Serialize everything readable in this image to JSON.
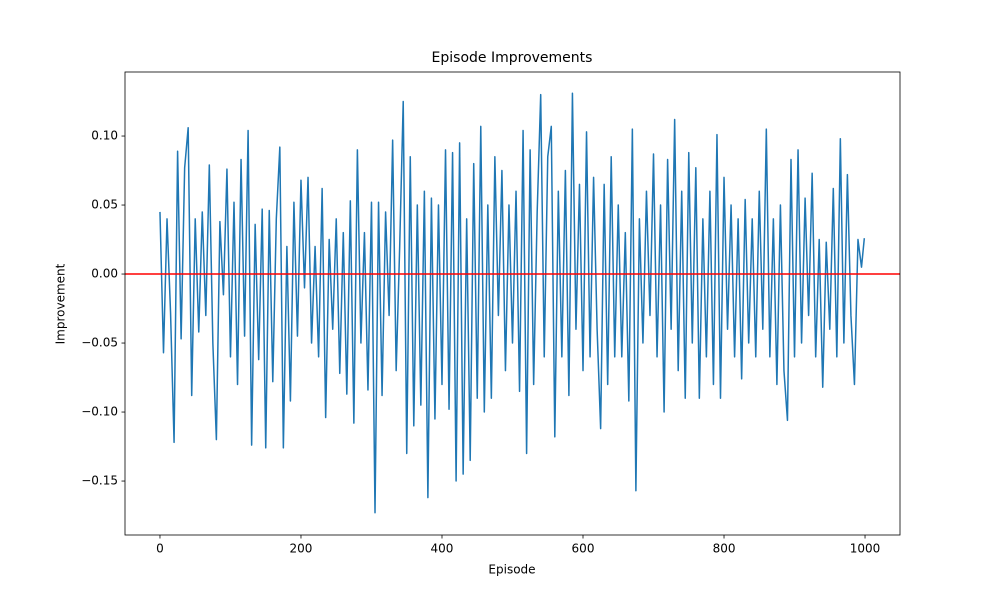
{
  "chart_data": {
    "type": "line",
    "title": "Episode Improvements",
    "x_label": "Episode",
    "y_label": "Improvement",
    "color": "#1f77b4",
    "x": [
      0,
      5,
      10,
      15,
      20,
      25,
      30,
      35,
      40,
      45,
      50,
      55,
      60,
      65,
      70,
      75,
      80,
      85,
      90,
      95,
      100,
      105,
      110,
      115,
      120,
      125,
      130,
      135,
      140,
      145,
      150,
      155,
      160,
      165,
      170,
      175,
      180,
      185,
      190,
      195,
      200,
      205,
      210,
      215,
      220,
      225,
      230,
      235,
      240,
      245,
      250,
      255,
      260,
      265,
      270,
      275,
      280,
      285,
      290,
      295,
      300,
      305,
      310,
      315,
      320,
      325,
      330,
      335,
      340,
      345,
      350,
      355,
      360,
      365,
      370,
      375,
      380,
      385,
      390,
      395,
      400,
      405,
      410,
      415,
      420,
      425,
      430,
      435,
      440,
      445,
      450,
      455,
      460,
      465,
      470,
      475,
      480,
      485,
      490,
      495,
      500,
      505,
      510,
      515,
      520,
      525,
      530,
      535,
      540,
      545,
      550,
      555,
      560,
      565,
      570,
      575,
      580,
      585,
      590,
      595,
      600,
      605,
      610,
      615,
      620,
      625,
      630,
      635,
      640,
      645,
      650,
      655,
      660,
      665,
      670,
      675,
      680,
      685,
      690,
      695,
      700,
      705,
      710,
      715,
      720,
      725,
      730,
      735,
      740,
      745,
      750,
      755,
      760,
      765,
      770,
      775,
      780,
      785,
      790,
      795,
      800,
      805,
      810,
      815,
      820,
      825,
      830,
      835,
      840,
      845,
      850,
      855,
      860,
      865,
      870,
      875,
      880,
      885,
      890,
      895,
      900,
      905,
      910,
      915,
      920,
      925,
      930,
      935,
      940,
      945,
      950,
      955,
      960,
      965,
      970,
      975,
      980,
      985,
      990,
      995,
      999
    ],
    "values": [
      0.045,
      -0.057,
      0.04,
      -0.028,
      -0.122,
      0.089,
      -0.047,
      0.077,
      0.106,
      -0.088,
      0.04,
      -0.042,
      0.045,
      -0.03,
      0.079,
      -0.05,
      -0.12,
      0.038,
      -0.015,
      0.076,
      -0.06,
      0.052,
      -0.08,
      0.083,
      -0.045,
      0.104,
      -0.124,
      0.036,
      -0.062,
      0.047,
      -0.126,
      0.046,
      -0.078,
      0.04,
      0.092,
      -0.126,
      0.02,
      -0.092,
      0.052,
      -0.045,
      0.068,
      -0.01,
      0.07,
      -0.05,
      0.02,
      -0.06,
      0.062,
      -0.104,
      0.025,
      -0.04,
      0.04,
      -0.072,
      0.03,
      -0.087,
      0.053,
      -0.108,
      0.09,
      -0.05,
      0.03,
      -0.084,
      0.052,
      -0.173,
      0.052,
      -0.088,
      0.045,
      -0.03,
      0.097,
      -0.07,
      0.02,
      0.125,
      -0.13,
      0.085,
      -0.11,
      0.05,
      -0.095,
      0.06,
      -0.162,
      0.055,
      -0.105,
      0.05,
      -0.08,
      0.09,
      -0.098,
      0.088,
      -0.15,
      0.095,
      -0.145,
      0.04,
      -0.135,
      0.08,
      -0.09,
      0.107,
      -0.1,
      0.05,
      -0.09,
      0.085,
      -0.03,
      0.075,
      -0.07,
      0.05,
      -0.05,
      0.06,
      -0.085,
      0.104,
      -0.13,
      0.09,
      -0.08,
      0.045,
      0.13,
      -0.06,
      0.085,
      0.107,
      -0.118,
      0.06,
      -0.06,
      0.075,
      -0.088,
      0.131,
      -0.04,
      0.065,
      -0.07,
      0.103,
      -0.06,
      0.07,
      -0.04,
      -0.112,
      0.065,
      -0.08,
      0.085,
      -0.06,
      0.05,
      -0.06,
      0.03,
      -0.092,
      0.105,
      -0.157,
      0.04,
      -0.05,
      0.06,
      -0.03,
      0.087,
      -0.06,
      0.05,
      -0.1,
      0.083,
      -0.04,
      0.112,
      -0.07,
      0.06,
      -0.09,
      0.088,
      -0.05,
      0.077,
      -0.09,
      0.04,
      -0.06,
      0.06,
      -0.08,
      0.101,
      -0.09,
      0.07,
      -0.04,
      0.05,
      -0.06,
      0.04,
      -0.076,
      0.054,
      -0.05,
      0.04,
      -0.06,
      0.06,
      -0.04,
      0.105,
      -0.06,
      0.04,
      -0.08,
      0.05,
      -0.07,
      -0.106,
      0.083,
      -0.06,
      0.09,
      -0.05,
      0.055,
      -0.03,
      0.073,
      -0.06,
      0.025,
      -0.082,
      0.023,
      -0.04,
      0.062,
      -0.06,
      0.098,
      -0.05,
      0.072,
      -0.03,
      -0.08,
      0.025,
      0.005,
      0.026
    ],
    "hline": {
      "y": 0,
      "color": "#ff0000"
    },
    "xlim": [
      -49.6,
      1049.6
    ],
    "xticks": [
      0,
      200,
      400,
      600,
      800,
      1000
    ],
    "ylim": [
      -0.1891,
      0.1464
    ],
    "yticks": [
      {
        "value": -0.15,
        "label": "−0.15"
      },
      {
        "value": -0.1,
        "label": "−0.10"
      },
      {
        "value": -0.05,
        "label": "−0.05"
      },
      {
        "value": 0,
        "label": "0.00"
      },
      {
        "value": 0.05,
        "label": "0.05"
      },
      {
        "value": 0.1,
        "label": "0.10"
      }
    ]
  }
}
